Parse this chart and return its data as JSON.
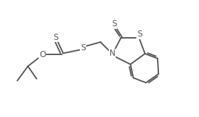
{
  "bg_color": "#ffffff",
  "line_color": "#555555",
  "text_color": "#555555",
  "line_width": 1.4,
  "font_size": 8.5,
  "xlim": [
    0,
    10
  ],
  "ylim": [
    0,
    6
  ],
  "figsize": [
    2.89,
    1.7
  ],
  "dpi": 100
}
